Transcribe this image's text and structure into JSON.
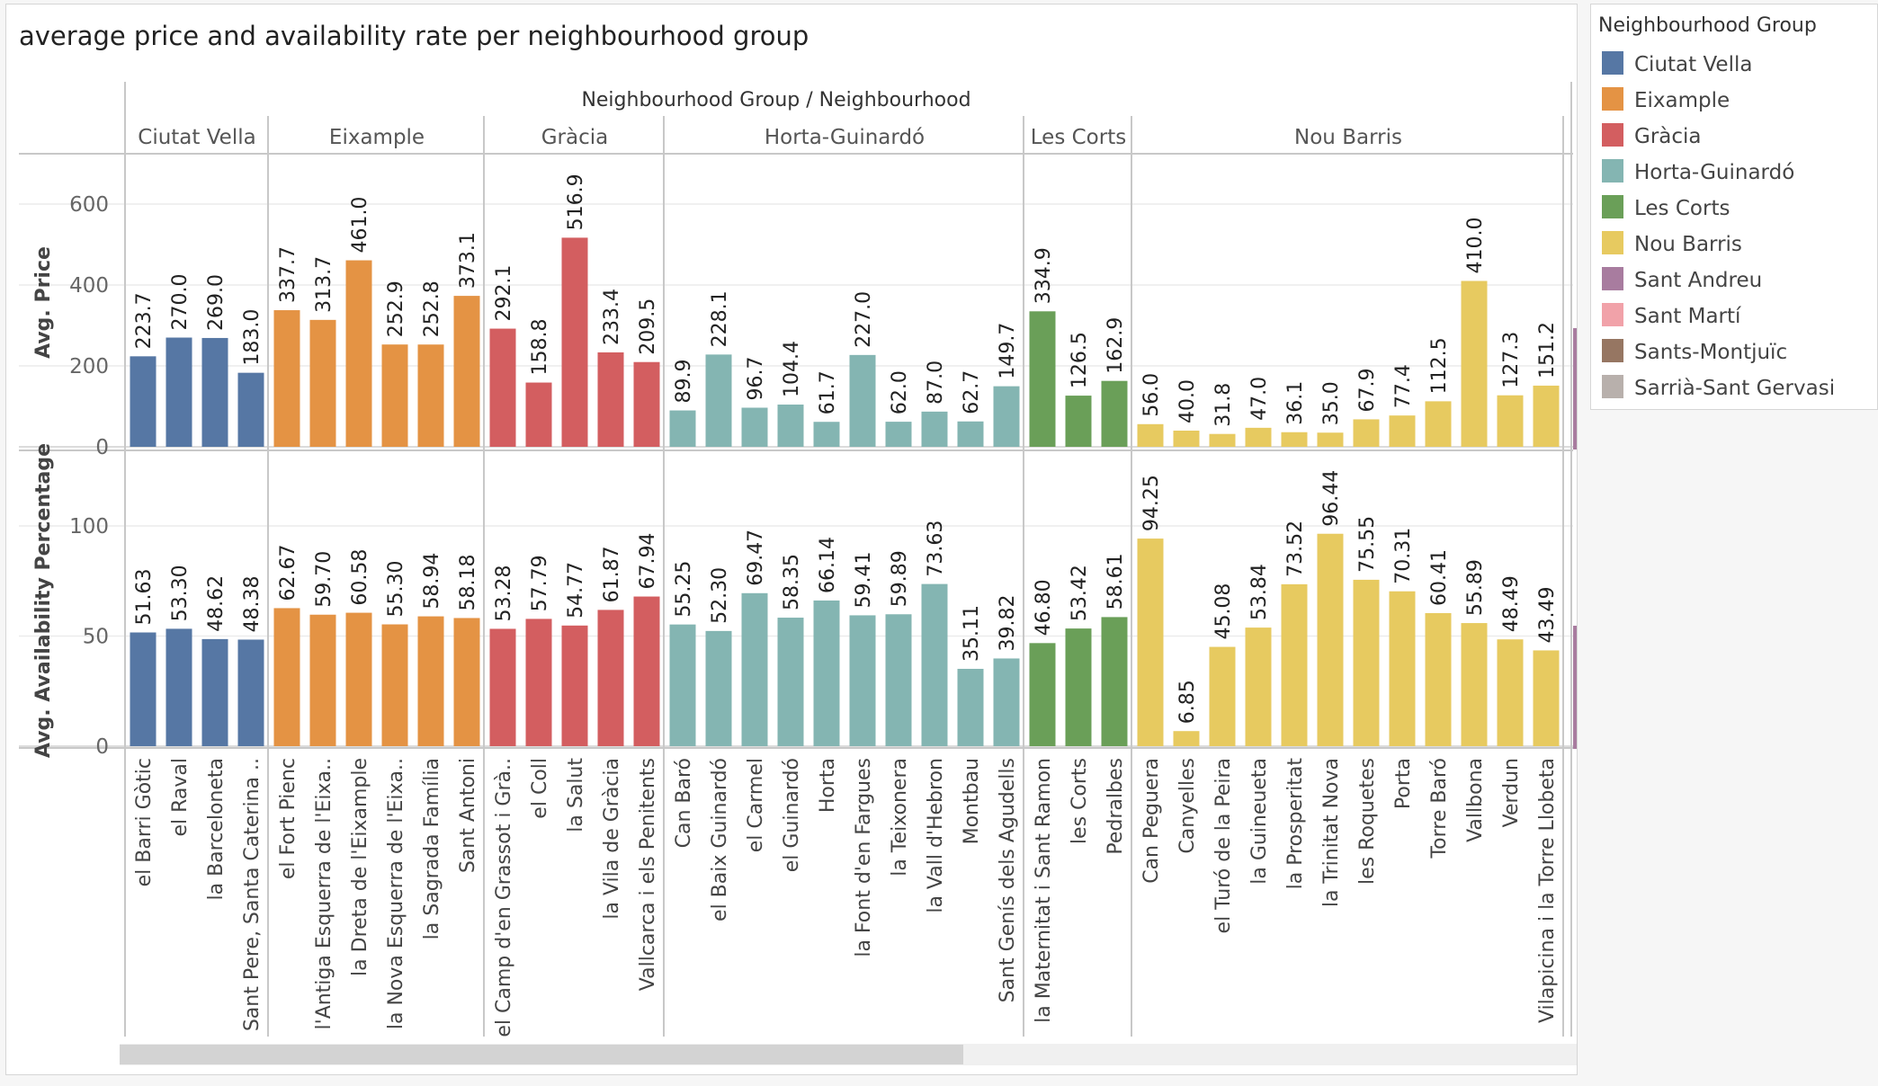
{
  "title": "average price  and availability rate  per neighbourhood group",
  "column_header": "Neighbourhood Group / Neighbourhood",
  "legend": {
    "title": "Neighbourhood Group",
    "items": [
      {
        "label": "Ciutat Vella",
        "color": "#5677a4"
      },
      {
        "label": "Eixample",
        "color": "#e49344"
      },
      {
        "label": "Gràcia",
        "color": "#d35e60"
      },
      {
        "label": "Horta-Guinardó",
        "color": "#84b5b2"
      },
      {
        "label": "Les Corts",
        "color": "#6a9f58"
      },
      {
        "label": "Nou Barris",
        "color": "#e7ca60"
      },
      {
        "label": "Sant Andreu",
        "color": "#a87c9f"
      },
      {
        "label": "Sant Martí",
        "color": "#f1a2a9"
      },
      {
        "label": "Sants-Montjuïc",
        "color": "#967662"
      },
      {
        "label": "Sarrià-Sant Gervasi",
        "color": "#b8b0ac"
      }
    ]
  },
  "chart_data": {
    "type": "bar",
    "panels": [
      {
        "measure": "price",
        "ylabel": "Avg. Price",
        "ylim": [
          0,
          700
        ],
        "ticks": [
          0,
          200,
          400,
          600
        ],
        "decimals": 1
      },
      {
        "measure": "availability",
        "ylabel": "Avg. Availability Percentage",
        "ylim": [
          0,
          120
        ],
        "ticks": [
          0,
          50,
          100
        ],
        "decimals": 2
      }
    ],
    "groups": [
      {
        "name": "Ciutat Vella",
        "neighbourhoods": [
          {
            "name": "el Barri Gòtic",
            "price": 223.7,
            "availability": 51.63
          },
          {
            "name": "el Raval",
            "price": 270.0,
            "availability": 53.3
          },
          {
            "name": "la Barceloneta",
            "price": 269.0,
            "availability": 48.62
          },
          {
            "name": "Sant Pere, Santa Caterina ..",
            "price": 183.0,
            "availability": 48.38
          }
        ]
      },
      {
        "name": "Eixample",
        "neighbourhoods": [
          {
            "name": "el Fort Pienc",
            "price": 337.7,
            "availability": 62.67
          },
          {
            "name": "l'Antiga Esquerra de l'Eixa..",
            "price": 313.7,
            "availability": 59.7
          },
          {
            "name": "la Dreta de l'Eixample",
            "price": 461.0,
            "availability": 60.58
          },
          {
            "name": "la Nova Esquerra de l'Eixa..",
            "price": 252.9,
            "availability": 55.3
          },
          {
            "name": "la Sagrada Família",
            "price": 252.8,
            "availability": 58.94
          },
          {
            "name": "Sant Antoni",
            "price": 373.1,
            "availability": 58.18
          }
        ]
      },
      {
        "name": "Gràcia",
        "neighbourhoods": [
          {
            "name": "el Camp d'en Grassot i Grà..",
            "price": 292.1,
            "availability": 53.28
          },
          {
            "name": "el Coll",
            "price": 158.8,
            "availability": 57.79
          },
          {
            "name": "la Salut",
            "price": 516.9,
            "availability": 54.77
          },
          {
            "name": "la Vila de Gràcia",
            "price": 233.4,
            "availability": 61.87
          },
          {
            "name": "Vallcarca i els Penitents",
            "price": 209.5,
            "availability": 67.94
          }
        ]
      },
      {
        "name": "Horta-Guinardó",
        "neighbourhoods": [
          {
            "name": "Can Baró",
            "price": 89.9,
            "availability": 55.25
          },
          {
            "name": "el Baix Guinardó",
            "price": 228.1,
            "availability": 52.3
          },
          {
            "name": "el Carmel",
            "price": 96.7,
            "availability": 69.47
          },
          {
            "name": "el Guinardó",
            "price": 104.4,
            "availability": 58.35
          },
          {
            "name": "Horta",
            "price": 61.7,
            "availability": 66.14
          },
          {
            "name": "la Font d'en Fargues",
            "price": 227.0,
            "availability": 59.41
          },
          {
            "name": "la Teixonera",
            "price": 62.0,
            "availability": 59.89
          },
          {
            "name": "la Vall d'Hebron",
            "price": 87.0,
            "availability": 73.63
          },
          {
            "name": "Montbau",
            "price": 62.7,
            "availability": 35.11
          },
          {
            "name": "Sant Genís dels Agudells",
            "price": 149.7,
            "availability": 39.82
          }
        ]
      },
      {
        "name": "Les Corts",
        "neighbourhoods": [
          {
            "name": "la Maternitat i Sant Ramon",
            "price": 334.9,
            "availability": 46.8
          },
          {
            "name": "les Corts",
            "price": 126.5,
            "availability": 53.42
          },
          {
            "name": "Pedralbes",
            "price": 162.9,
            "availability": 58.61
          }
        ]
      },
      {
        "name": "Nou Barris",
        "neighbourhoods": [
          {
            "name": "Can Peguera",
            "price": 56.0,
            "availability": 94.25
          },
          {
            "name": "Canyelles",
            "price": 40.0,
            "availability": 6.85
          },
          {
            "name": "el Turó de la Peira",
            "price": 31.8,
            "availability": 45.08
          },
          {
            "name": "la Guineueta",
            "price": 47.0,
            "availability": 53.84
          },
          {
            "name": "la Prosperitat",
            "price": 36.1,
            "availability": 73.52
          },
          {
            "name": "la Trinitat Nova",
            "price": 35.0,
            "availability": 96.44
          },
          {
            "name": "les Roquetes",
            "price": 67.9,
            "availability": 75.55
          },
          {
            "name": "Porta",
            "price": 77.4,
            "availability": 70.31
          },
          {
            "name": "Torre Baró",
            "price": 112.5,
            "availability": 60.41
          },
          {
            "name": "Vallbona",
            "price": 410.0,
            "availability": 55.89
          },
          {
            "name": "Verdun",
            "price": 127.3,
            "availability": 48.49
          },
          {
            "name": "Vilapicina i la Torre Llobeta",
            "price": 151.2,
            "availability": 43.49
          }
        ]
      }
    ]
  }
}
